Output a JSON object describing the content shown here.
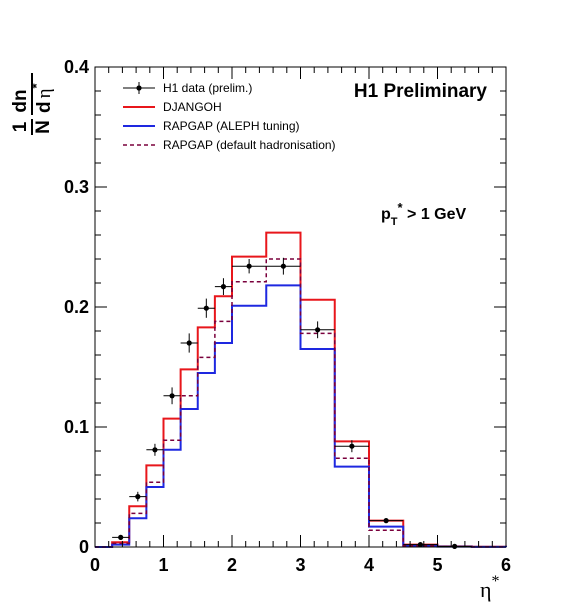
{
  "chart_data": {
    "type": "line",
    "title": "H1 Preliminary",
    "annotation": {
      "base": "p",
      "sub": "T",
      "sup": "*",
      "rest": " > 1 GeV"
    },
    "xlabel": {
      "base": "η",
      "sup": "*"
    },
    "ylabel": {
      "frac_num": "1",
      "frac_den": "N",
      "expr_num": "dn",
      "expr_den_d": "d",
      "expr_den_eta": "η",
      "expr_den_sup": "*"
    },
    "xlim": [
      0,
      6
    ],
    "ylim": [
      0,
      0.4
    ],
    "x_ticks": [
      "0",
      "1",
      "2",
      "3",
      "4",
      "5",
      "6"
    ],
    "y_ticks": [
      "0",
      "0.1",
      "0.2",
      "0.3",
      "0.4"
    ],
    "bin_edges": [
      0,
      0.25,
      0.5,
      0.75,
      1.0,
      1.25,
      1.5,
      1.75,
      2.0,
      2.5,
      3.0,
      3.5,
      4.0,
      4.5,
      5.0,
      5.5,
      6.0
    ],
    "series": [
      {
        "name": "DJANGOH",
        "style": "hist",
        "color": "#e8161b",
        "dash": "",
        "values": [
          0,
          0.004,
          0.034,
          0.068,
          0.107,
          0.148,
          0.183,
          0.209,
          0.242,
          0.262,
          0.206,
          0.088,
          0.022,
          0.002,
          0.0005,
          0.0002
        ]
      },
      {
        "name": "RAPGAP (ALEPH tuning)",
        "style": "hist",
        "color": "#1e28e0",
        "dash": "",
        "values": [
          0,
          0.002,
          0.024,
          0.05,
          0.081,
          0.115,
          0.145,
          0.17,
          0.201,
          0.218,
          0.165,
          0.067,
          0.017,
          0.001,
          0.0003,
          0.0001
        ]
      },
      {
        "name": "RAPGAP (default hadronisation)",
        "style": "hist",
        "color": "#7a003c",
        "dash": "4,3",
        "values": [
          0,
          0.003,
          0.028,
          0.054,
          0.089,
          0.126,
          0.158,
          0.188,
          0.221,
          0.24,
          0.178,
          0.074,
          0.014,
          0.001,
          0.0003,
          0.0001
        ]
      },
      {
        "name": "H1 data (prelim.)",
        "style": "points",
        "color": "#000000",
        "x": [
          0.375,
          0.625,
          0.875,
          1.125,
          1.375,
          1.625,
          1.875,
          2.25,
          2.75,
          3.25,
          3.75,
          4.25,
          4.75,
          5.25
        ],
        "xerr": [
          0.125,
          0.125,
          0.125,
          0.125,
          0.125,
          0.125,
          0.125,
          0.25,
          0.25,
          0.25,
          0.25,
          0.25,
          0.25,
          0.25
        ],
        "y": [
          0.008,
          0.042,
          0.081,
          0.126,
          0.17,
          0.199,
          0.217,
          0.234,
          0.234,
          0.181,
          0.084,
          0.022,
          0.002,
          0.0005
        ],
        "yerr": [
          0.002,
          0.004,
          0.005,
          0.007,
          0.008,
          0.008,
          0.007,
          0.006,
          0.007,
          0.007,
          0.005,
          0.002,
          0.001,
          0.0005
        ]
      }
    ],
    "legend": {
      "position": "top-left",
      "entries": [
        {
          "label": "H1 data (prelim.)",
          "kind": "points",
          "color": "#000000",
          "dash": ""
        },
        {
          "label": "DJANGOH",
          "kind": "line",
          "color": "#e8161b",
          "dash": ""
        },
        {
          "label": "RAPGAP (ALEPH tuning)",
          "kind": "line",
          "color": "#1e28e0",
          "dash": ""
        },
        {
          "label": "RAPGAP (default hadronisation)",
          "kind": "line",
          "color": "#7a003c",
          "dash": "4,3"
        }
      ]
    }
  }
}
